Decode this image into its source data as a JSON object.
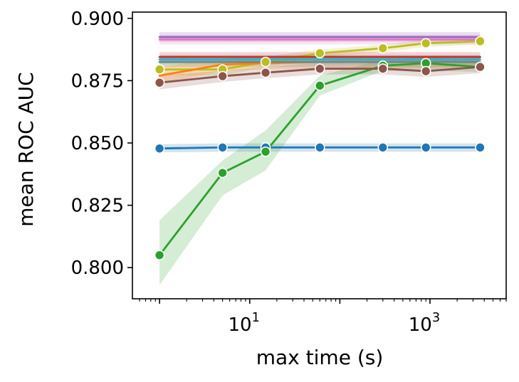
{
  "chart_data": {
    "type": "line",
    "title": "",
    "xlabel": "max time (s)",
    "ylabel": "mean ROC AUC",
    "xscale": "log",
    "xlim": [
      0.5,
      7000
    ],
    "ylim": [
      0.7875,
      0.9025
    ],
    "x_ticks": [
      {
        "value": 10,
        "base": "10",
        "exp": "1"
      },
      {
        "value": 1000,
        "base": "10",
        "exp": "3"
      }
    ],
    "y_ticks": [
      {
        "value": 0.8,
        "label": "0.800"
      },
      {
        "value": 0.825,
        "label": "0.825"
      },
      {
        "value": 0.85,
        "label": "0.850"
      },
      {
        "value": 0.875,
        "label": "0.875"
      },
      {
        "value": 0.9,
        "label": "0.900"
      }
    ],
    "grid": false,
    "legend": "none",
    "series": [
      {
        "color": "#1f77b4",
        "markers": true,
        "x": [
          1,
          5,
          15,
          60,
          300,
          900,
          3600
        ],
        "y": [
          0.8478,
          0.8482,
          0.8482,
          0.8482,
          0.8482,
          0.8482,
          0.8482
        ],
        "lower": [
          0.8462,
          0.8465,
          0.8465,
          0.8465,
          0.8465,
          0.8465,
          0.8465
        ],
        "upper": [
          0.8495,
          0.8498,
          0.8498,
          0.8498,
          0.8498,
          0.8498,
          0.8498
        ]
      },
      {
        "color": "#2ca02c",
        "markers": true,
        "x": [
          1,
          5,
          15,
          60,
          300,
          900,
          3600
        ],
        "y": [
          0.805,
          0.838,
          0.8465,
          0.873,
          0.881,
          0.882,
          0.8805
        ],
        "lower": [
          0.793,
          0.829,
          0.839,
          0.869,
          0.879,
          0.879,
          0.8785
        ],
        "upper": [
          0.819,
          0.843,
          0.855,
          0.877,
          0.8835,
          0.8845,
          0.883
        ]
      },
      {
        "color": "#bcbd22",
        "markers": true,
        "x": [
          1,
          5,
          15,
          60,
          300,
          900,
          3600
        ],
        "y": [
          0.8795,
          0.8795,
          0.8825,
          0.886,
          0.888,
          0.89,
          0.8908
        ],
        "lower": [
          0.877,
          0.877,
          0.8805,
          0.8845,
          0.8865,
          0.8885,
          0.8895
        ],
        "upper": [
          0.882,
          0.882,
          0.8845,
          0.8875,
          0.8895,
          0.8915,
          0.892
        ]
      },
      {
        "color": "#8c564b",
        "markers": true,
        "x": [
          1,
          5,
          15,
          60,
          300,
          900,
          3600
        ],
        "y": [
          0.8742,
          0.8768,
          0.8782,
          0.8798,
          0.8798,
          0.8788,
          0.8805
        ],
        "lower": [
          0.8715,
          0.8745,
          0.876,
          0.8775,
          0.8775,
          0.8765,
          0.878
        ],
        "upper": [
          0.877,
          0.879,
          0.8805,
          0.882,
          0.882,
          0.881,
          0.883
        ]
      },
      {
        "color": "#ff7f0e",
        "markers": false,
        "x": [
          1,
          5,
          15,
          60,
          300,
          900,
          3600
        ],
        "y": [
          0.877,
          0.8815,
          0.882,
          0.8825,
          0.8825,
          0.8825,
          0.8825
        ],
        "lower": [
          0.8735,
          0.879,
          0.8795,
          0.88,
          0.88,
          0.88,
          0.88
        ],
        "upper": [
          0.8805,
          0.884,
          0.8845,
          0.885,
          0.885,
          0.885,
          0.885
        ]
      },
      {
        "color": "#7f7f7f",
        "markers": false,
        "x": [
          1,
          3600
        ],
        "y": [
          0.8825,
          0.8825
        ],
        "lower": [
          0.8805,
          0.8805
        ],
        "upper": [
          0.8845,
          0.8845
        ]
      },
      {
        "color": "#d62728",
        "markers": false,
        "x": [
          1,
          3600
        ],
        "y": [
          0.8845,
          0.8845
        ],
        "lower": [
          0.8825,
          0.8825
        ],
        "upper": [
          0.8865,
          0.8865
        ]
      },
      {
        "color": "#9467bd",
        "markers": false,
        "x": [
          1,
          3600
        ],
        "y": [
          0.8925,
          0.8925
        ],
        "lower": [
          0.8905,
          0.8905
        ],
        "upper": [
          0.8945,
          0.8945
        ]
      },
      {
        "color": "#e377c2",
        "markers": false,
        "x": [
          1,
          3600
        ],
        "y": [
          0.8915,
          0.8915
        ],
        "lower": [
          0.8895,
          0.8895
        ],
        "upper": [
          0.8935,
          0.8935
        ]
      },
      {
        "color": "#17becf",
        "markers": false,
        "x": [
          1,
          3600
        ],
        "y": [
          0.8835,
          0.8835
        ],
        "lower": [
          0.8815,
          0.8815
        ],
        "upper": [
          0.8855,
          0.8855
        ]
      }
    ]
  }
}
